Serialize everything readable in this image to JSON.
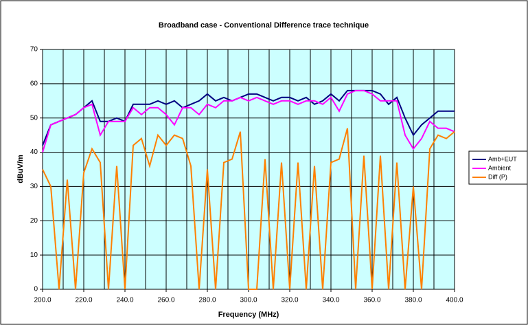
{
  "chart_data": {
    "type": "line",
    "title": "Broadband case - Conventional Difference trace technique",
    "x_label": "Frequency (MHz)",
    "y_label": "dBuV/m",
    "x": [
      200,
      204,
      208,
      212,
      216,
      220,
      224,
      228,
      232,
      236,
      240,
      244,
      248,
      252,
      256,
      260,
      264,
      268,
      272,
      276,
      280,
      284,
      288,
      292,
      296,
      300,
      304,
      308,
      312,
      316,
      320,
      324,
      328,
      332,
      336,
      340,
      344,
      348,
      352,
      356,
      360,
      364,
      368,
      372,
      376,
      380,
      384,
      388,
      392,
      396,
      400
    ],
    "series": [
      {
        "name": "Amb+EUT",
        "color": "#000080",
        "values": [
          42,
          48,
          49,
          50,
          51,
          53,
          55,
          49,
          49,
          50,
          49,
          54,
          54,
          54,
          55,
          54,
          55,
          53,
          54,
          55,
          57,
          55,
          56,
          55,
          56,
          57,
          57,
          56,
          55,
          56,
          56,
          55,
          56,
          54,
          55,
          57,
          55,
          58,
          58,
          58,
          58,
          57,
          54,
          56,
          50,
          45,
          48,
          50,
          52,
          52,
          52
        ]
      },
      {
        "name": "Ambient",
        "color": "#ff00ff",
        "values": [
          40,
          48,
          49,
          50,
          51,
          53,
          54,
          45,
          49,
          49,
          49,
          53,
          51,
          53,
          53,
          51,
          48,
          53,
          53,
          51,
          54,
          53,
          55,
          55,
          56,
          55,
          56,
          55,
          54,
          55,
          55,
          54,
          55,
          55,
          54,
          56,
          52,
          57,
          58,
          58,
          57,
          55,
          55,
          55,
          45,
          41,
          44,
          49,
          47,
          47,
          46
        ]
      },
      {
        "name": "Diff (P)",
        "color": "#ff8000",
        "values": [
          35,
          30,
          0,
          32,
          0,
          34,
          41,
          37,
          0,
          36,
          0,
          42,
          44,
          36,
          45,
          42,
          45,
          44,
          36,
          0,
          35,
          0,
          37,
          38,
          46,
          0,
          0,
          38,
          0,
          37,
          0,
          37,
          0,
          36,
          0,
          37,
          38,
          47,
          0,
          39,
          0,
          39,
          0,
          37,
          0,
          30,
          0,
          41,
          45,
          44,
          46
        ]
      }
    ],
    "xlim": [
      200,
      400
    ],
    "xticks": [
      {
        "value": 200,
        "label": "200.0"
      },
      {
        "value": 220,
        "label": "220.0"
      },
      {
        "value": 240,
        "label": "240.0"
      },
      {
        "value": 260,
        "label": "260.0"
      },
      {
        "value": 280,
        "label": "280.0"
      },
      {
        "value": 300,
        "label": "300.0"
      },
      {
        "value": 320,
        "label": "320.0"
      },
      {
        "value": 340,
        "label": "340.0"
      },
      {
        "value": 360,
        "label": "360.0"
      },
      {
        "value": 380,
        "label": "380.0"
      },
      {
        "value": 400,
        "label": "400.0"
      }
    ],
    "xminorticks": [
      210,
      230,
      250,
      270,
      290,
      310,
      330,
      350,
      370,
      390
    ],
    "ylim": [
      0,
      70
    ],
    "yticks": [
      0,
      10,
      20,
      30,
      40,
      50,
      60,
      70
    ],
    "grid": true,
    "legend": "right",
    "plot_background": "#ccffff"
  }
}
